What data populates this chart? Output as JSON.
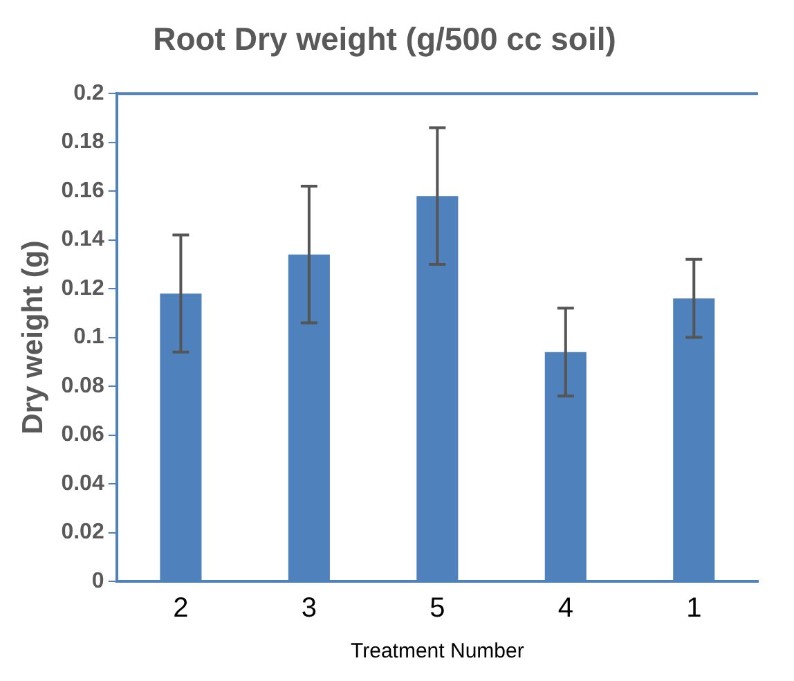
{
  "chart_data": {
    "type": "bar",
    "title": "Root Dry weight (g/500 cc soil)",
    "xlabel": "Treatment Number",
    "ylabel": "Dry weight (g)",
    "categories": [
      "2",
      "3",
      "5",
      "4",
      "1"
    ],
    "values": [
      0.118,
      0.134,
      0.158,
      0.094,
      0.116
    ],
    "errors": [
      0.024,
      0.028,
      0.028,
      0.018,
      0.016
    ],
    "color": "#4f81bd",
    "ylim": [
      0,
      0.2
    ],
    "yticks": [
      0,
      0.02,
      0.04,
      0.06,
      0.08,
      0.1,
      0.12,
      0.14,
      0.16,
      0.18,
      0.2
    ],
    "grid": false,
    "legend": false
  }
}
